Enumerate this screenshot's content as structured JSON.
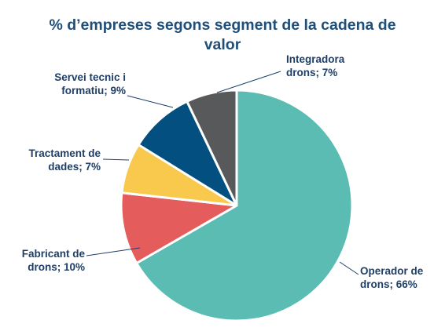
{
  "chart_data": {
    "type": "pie",
    "title": "% d’empreses segons segment de la cadena de valor",
    "slices": [
      {
        "label_lines": [
          "Operador de",
          "drons; 66%"
        ],
        "value": 66,
        "color": "#5bbcb3"
      },
      {
        "label_lines": [
          "Fabricant de",
          "drons; 10%"
        ],
        "value": 10,
        "color": "#e45c5c"
      },
      {
        "label_lines": [
          "Tractament de",
          "dades; 7%"
        ],
        "value": 7,
        "color": "#f8c94c"
      },
      {
        "label_lines": [
          "Servei tecnic i",
          "formatiu; 9%"
        ],
        "value": 9,
        "color": "#034f80"
      },
      {
        "label_lines": [
          "Integradora",
          "drons; 7%"
        ],
        "value": 7,
        "color": "#58595b"
      }
    ]
  }
}
